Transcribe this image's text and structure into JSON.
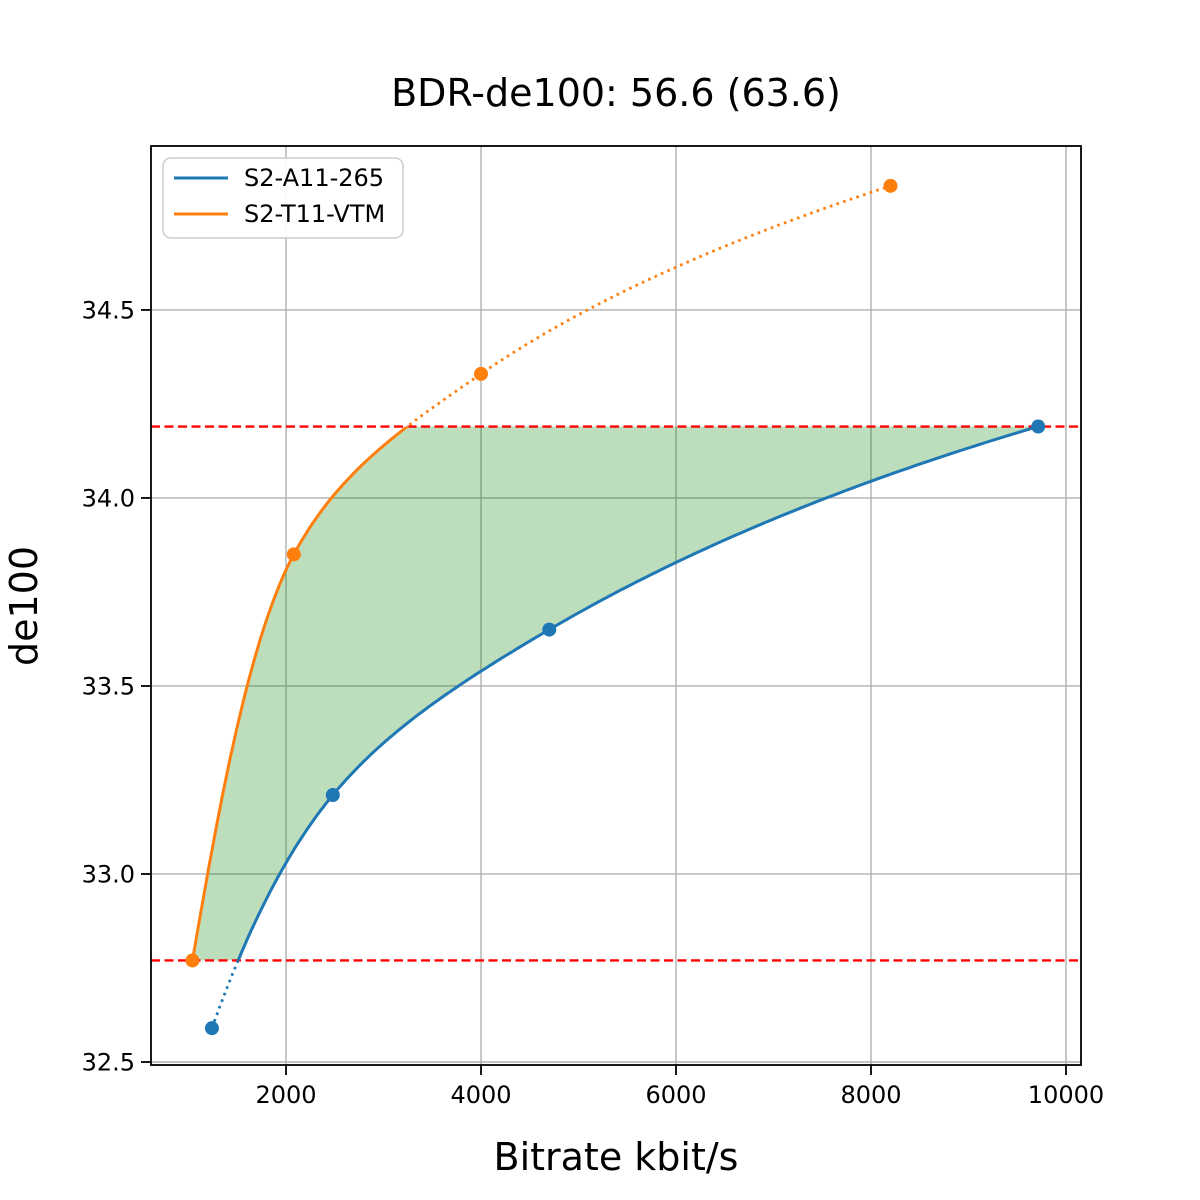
{
  "chart_data": {
    "type": "line",
    "title": "BDR-de100: 56.6 (63.6)",
    "xlabel": "Bitrate kbit/s",
    "ylabel": "de100",
    "xlim": [
      615,
      10154
    ],
    "ylim": [
      32.492,
      34.936
    ],
    "x_ticks": [
      2000,
      4000,
      6000,
      8000,
      10000
    ],
    "x_tick_labels": [
      "2000",
      "4000",
      "6000",
      "8000",
      "10000"
    ],
    "y_ticks": [
      32.5,
      33.0,
      33.5,
      34.0,
      34.5
    ],
    "y_tick_labels": [
      "32.5",
      "33.0",
      "33.5",
      "34.0",
      "34.5"
    ],
    "grid": true,
    "grid_color": "#b0b0b0",
    "spine_color": "#000000",
    "legend_position": "upper-left",
    "series": [
      {
        "name": "S2-A11-265",
        "color": "#1f77b4",
        "x": [
          1240,
          2480,
          4700,
          9715
        ],
        "y": [
          32.59,
          33.21,
          33.65,
          34.19
        ]
      },
      {
        "name": "S2-T11-VTM",
        "color": "#ff7f0e",
        "x": [
          1040,
          2080,
          4000,
          8200
        ],
        "y": [
          32.77,
          33.85,
          34.33,
          34.83
        ]
      }
    ],
    "overlap_band": {
      "upper": 34.19,
      "lower": 32.77,
      "line_color": "#ff0000",
      "line_style": "dashed",
      "fill_color": "#008000",
      "fill_opacity": 0.26
    },
    "segment_style": {
      "inside_band": "solid",
      "outside_band": "dotted"
    }
  }
}
